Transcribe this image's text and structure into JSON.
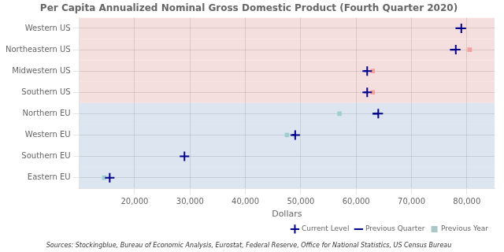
{
  "chart_data": {
    "type": "dot",
    "title": "Per Capita Annualized Nominal Gross Domestic Product (Fourth Quarter 2020)",
    "x_label": "Dollars",
    "annotations": [
      "Sources: Stockingblue, Bureau of Economic Analysis, Eurostat, Federal Reserve, Office for National Statistics, US Census Bureau"
    ],
    "orientation": "horizontal",
    "categories": [
      "Western US",
      "Northeastern US",
      "Midwestern US",
      "Southern US",
      "Northern EU",
      "Western EU",
      "Southern EU",
      "Eastern EU"
    ],
    "colors": [
      "#f5dede",
      "#f5dede",
      "#f5dede",
      "#f5dede",
      "#dde6f0",
      "#dde6f0",
      "#dde6f0",
      "#dde6f0"
    ],
    "series": [
      {
        "name": "Current Level",
        "type": "scatter",
        "marker": "cross",
        "color": "#00008B",
        "values": [
          79000,
          78000,
          62000,
          62000,
          64000,
          49000,
          29000,
          15500
        ]
      },
      {
        "name": "Previous Quarter",
        "type": "segment",
        "line_style": "solid",
        "color": "#00008B",
        "values": [
          78000,
          77000,
          61500,
          61500,
          63000,
          48500,
          null,
          null
        ]
      },
      {
        "name": "Previous Year",
        "type": "scatter",
        "marker": "square",
        "color": "#aac8c8",
        "colors": [
          "#f5a0a0",
          "#f5a0a0",
          "#f5a0a0",
          "#f5a0a0",
          "#9ecece",
          "#9ecece",
          "#9ecece",
          "#9ecece"
        ],
        "values": [
          null,
          80500,
          63000,
          63000,
          57000,
          47500,
          null,
          14500
        ]
      }
    ],
    "xlim": [
      10000,
      85000
    ],
    "xticks": [
      {
        "value": 20000,
        "label": "20,000"
      },
      {
        "value": 30000,
        "label": "30,000"
      },
      {
        "value": 40000,
        "label": "40,000"
      },
      {
        "value": 50000,
        "label": "50,000"
      },
      {
        "value": 60000,
        "label": "60,000"
      },
      {
        "value": 70000,
        "label": "70,000"
      },
      {
        "value": 80000,
        "label": "80,000"
      }
    ],
    "grid": true,
    "legend": "lower right"
  }
}
